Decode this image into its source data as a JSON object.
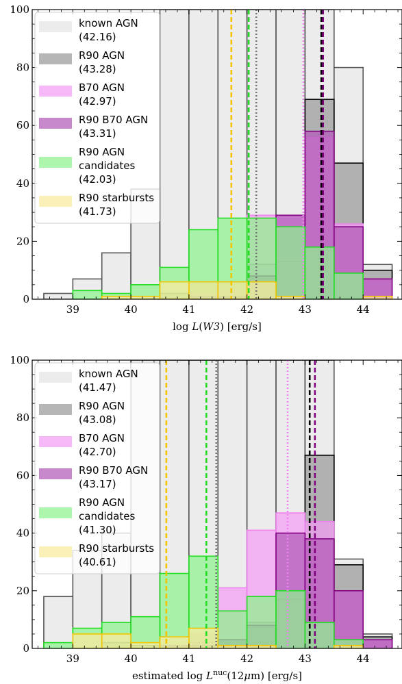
{
  "chart_data": [
    {
      "type": "bar",
      "xlabel": "log L(W3) [erg/s]",
      "ylabel": "",
      "xlim": [
        38.3,
        44.67
      ],
      "ylim": [
        0,
        100
      ],
      "xticks": [
        39,
        40,
        41,
        42,
        43,
        44
      ],
      "yticks": [
        0,
        20,
        40,
        60,
        80,
        100
      ],
      "bin_edges": [
        38.5,
        39.0,
        39.5,
        40.0,
        40.5,
        41.0,
        41.5,
        42.0,
        42.5,
        43.0,
        43.5,
        44.0,
        44.5
      ],
      "grid": false,
      "legend_position": "upper-left",
      "series": [
        {
          "key": "known",
          "name": "known AGN",
          "median_label": "(42.16)",
          "median": 42.16,
          "fill": "#e4e4e4",
          "edge": "#555555",
          "line_style": "dotted",
          "line_color": "#777777",
          "values": [
            2,
            7,
            16,
            38,
            100,
            100,
            100,
            100,
            100,
            100,
            80,
            12
          ]
        },
        {
          "key": "r90",
          "name": "R90 AGN",
          "median_label": "(43.28)",
          "median": 43.28,
          "fill": "#9a9a9a",
          "edge": "#000000",
          "line_style": "dashed",
          "line_color": "#000000",
          "values": [
            0,
            0,
            0,
            0,
            2,
            6,
            6,
            12,
            13,
            69,
            47,
            10
          ]
        },
        {
          "key": "b70",
          "name": "B70 AGN",
          "median_label": "(42.97)",
          "median": 42.97,
          "fill": "#f39cf3",
          "edge": "#ee82ee",
          "line_style": "dotted",
          "line_color": "#ee82ee",
          "values": [
            0,
            0,
            0,
            0,
            0,
            2,
            3,
            29,
            29,
            56,
            26,
            7
          ]
        },
        {
          "key": "r90b70",
          "name": "R90 B70 AGN",
          "median_label": "(43.31)",
          "median": 43.31,
          "fill": "#b25ab8",
          "edge": "#800080",
          "line_style": "dashed",
          "line_color": "#800080",
          "values": [
            0,
            0,
            0,
            0,
            0,
            1,
            1,
            8,
            29,
            58,
            25,
            7
          ]
        },
        {
          "key": "cand",
          "name": "R90 AGN candidates",
          "label_lines": [
            "R90 AGN",
            "candidates"
          ],
          "median_label": "(42.03)",
          "median": 42.03,
          "fill": "#8ef28e",
          "edge": "#22dd22",
          "line_style": "dashed",
          "line_color": "#22dd22",
          "values": [
            0,
            3,
            2,
            5,
            11,
            24,
            28,
            28,
            25,
            18,
            9,
            0
          ]
        },
        {
          "key": "sb",
          "name": "R90 starbursts",
          "median_label": "(41.73)",
          "median": 41.73,
          "fill": "#f9ea9c",
          "edge": "#f2c500",
          "line_style": "dashed",
          "line_color": "#f2c500",
          "values": [
            0,
            0,
            1,
            1,
            6,
            6,
            6,
            6,
            1,
            0,
            0,
            1
          ]
        }
      ]
    },
    {
      "type": "bar",
      "xlabel": "estimated log L^nuc(12μm) [erg/s]",
      "ylabel": "",
      "xlim": [
        38.3,
        44.67
      ],
      "ylim": [
        0,
        100
      ],
      "xticks": [
        39,
        40,
        41,
        42,
        43,
        44
      ],
      "yticks": [
        0,
        20,
        40,
        60,
        80,
        100
      ],
      "bin_edges": [
        38.5,
        39.0,
        39.5,
        40.0,
        40.5,
        41.0,
        41.5,
        42.0,
        42.5,
        43.0,
        43.5,
        44.0,
        44.5
      ],
      "grid": false,
      "legend_position": "upper-left",
      "series": [
        {
          "key": "known",
          "name": "known AGN",
          "median_label": "(41.47)",
          "median": 41.47,
          "fill": "#e4e4e4",
          "edge": "#555555",
          "line_style": "dotted",
          "line_color": "#777777",
          "values": [
            18,
            34,
            40,
            100,
            100,
            100,
            100,
            100,
            100,
            100,
            31,
            5
          ]
        },
        {
          "key": "r90",
          "name": "R90 AGN",
          "median_label": "(43.08)",
          "median": 43.08,
          "fill": "#9a9a9a",
          "edge": "#000000",
          "line_style": "dashed",
          "line_color": "#000000",
          "values": [
            0,
            0,
            2,
            1,
            1,
            2,
            3,
            9,
            17,
            67,
            29,
            4
          ]
        },
        {
          "key": "b70",
          "name": "B70 AGN",
          "median_label": "(42.70)",
          "median": 42.7,
          "fill": "#f39cf3",
          "edge": "#ee82ee",
          "line_style": "dotted",
          "line_color": "#ee82ee",
          "values": [
            0,
            0,
            0,
            0,
            1,
            5,
            21,
            41,
            47,
            44,
            20,
            3
          ]
        },
        {
          "key": "r90b70",
          "name": "R90 B70 AGN",
          "median_label": "(43.17)",
          "median": 43.17,
          "fill": "#b25ab8",
          "edge": "#800080",
          "line_style": "dashed",
          "line_color": "#800080",
          "values": [
            0,
            0,
            0,
            0,
            1,
            1,
            3,
            8,
            40,
            38,
            20,
            3
          ]
        },
        {
          "key": "cand",
          "name": "R90 AGN candidates",
          "label_lines": [
            "R90 AGN",
            "candidates"
          ],
          "median_label": "(41.30)",
          "median": 41.3,
          "fill": "#8ef28e",
          "edge": "#22dd22",
          "line_style": "dashed",
          "line_color": "#22dd22",
          "values": [
            2,
            7,
            9,
            11,
            26,
            32,
            13,
            18,
            20,
            9,
            3,
            0
          ]
        },
        {
          "key": "sb",
          "name": "R90 starbursts",
          "median_label": "(40.61)",
          "median": 40.61,
          "fill": "#f9ea9c",
          "edge": "#f2c500",
          "line_style": "dashed",
          "line_color": "#f2c500",
          "values": [
            0,
            5,
            5,
            2,
            4,
            7,
            1,
            1,
            0,
            0,
            1,
            0
          ]
        }
      ]
    }
  ]
}
